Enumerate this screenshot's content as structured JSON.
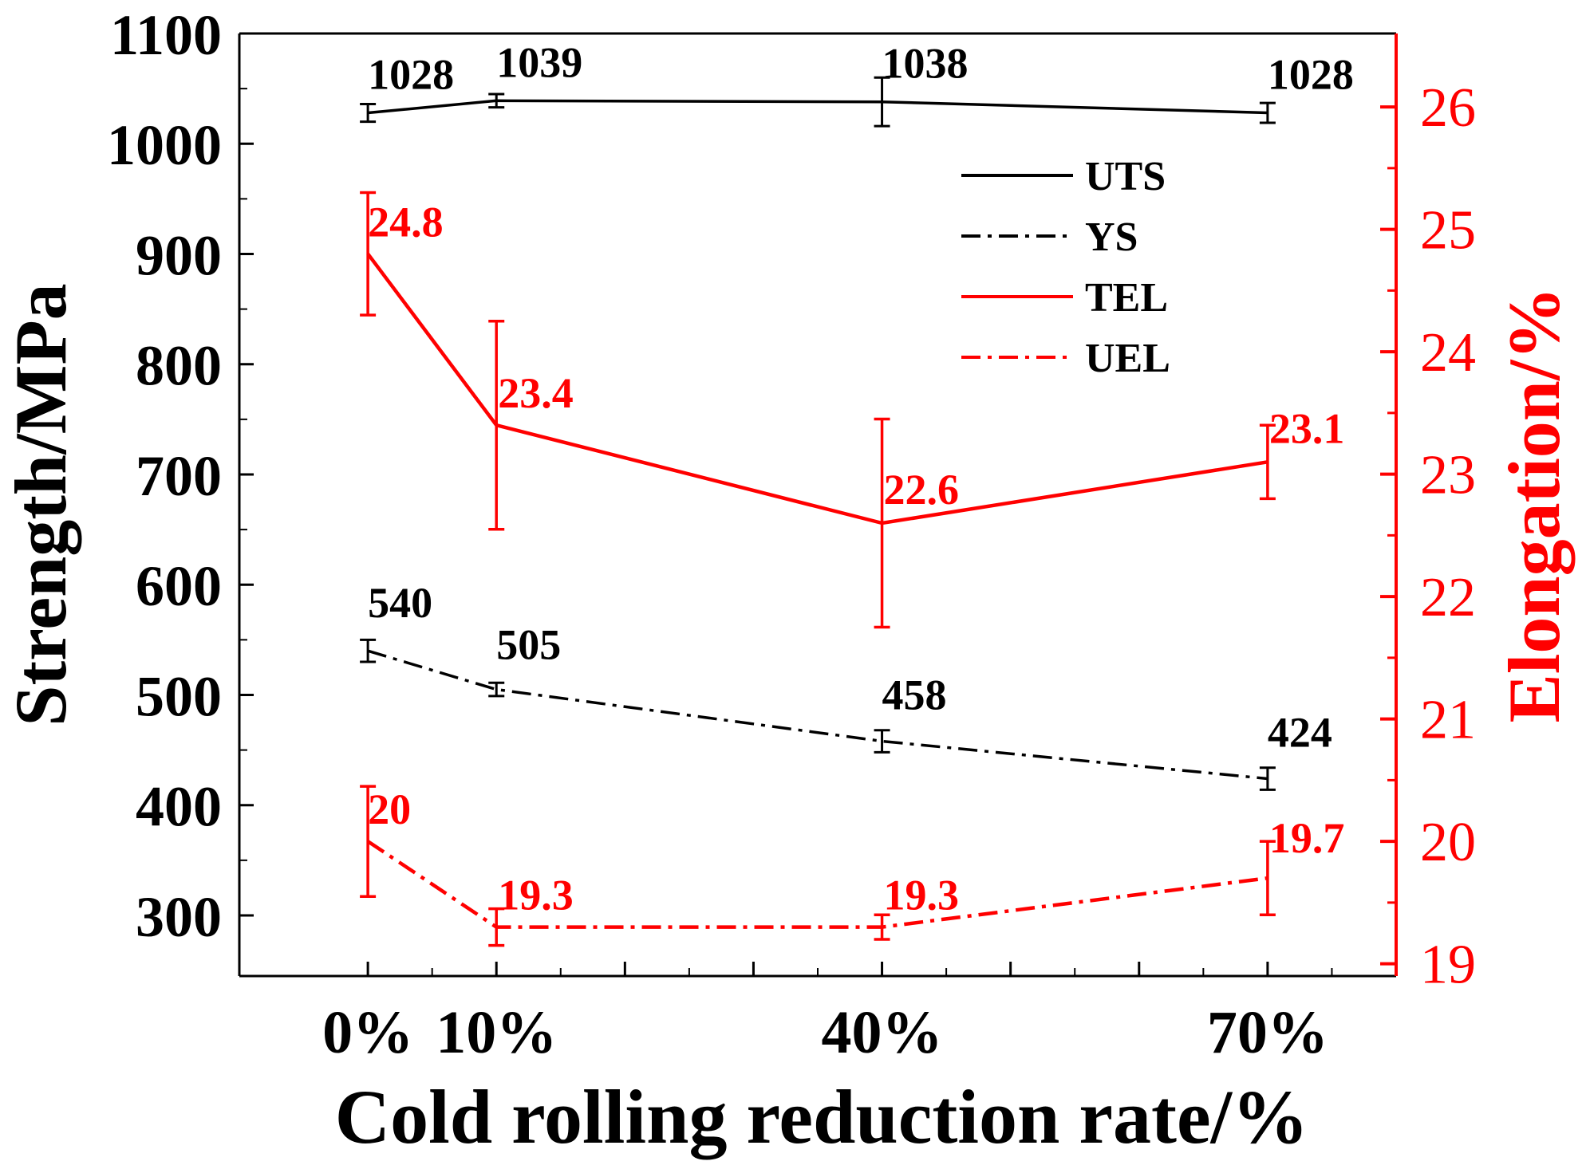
{
  "chart_data": {
    "type": "line",
    "title": "",
    "xlabel": "Cold rolling reduction rate/%",
    "ylabel_left": "Strength/MPa",
    "ylabel_right": "Elongation/%",
    "x_values": [
      0,
      10,
      40,
      70
    ],
    "x_tick_labels": [
      "0%",
      "10%",
      "40%",
      "70%"
    ],
    "x_range": [
      -10,
      80
    ],
    "y_left_range": [
      245,
      1100
    ],
    "y_left_ticks": [
      300,
      400,
      500,
      600,
      700,
      800,
      900,
      1000,
      1100
    ],
    "y_right_range": [
      18.9,
      26.6
    ],
    "y_right_ticks": [
      19,
      20,
      21,
      22,
      23,
      24,
      25,
      26
    ],
    "legend_position": "top-right",
    "series": [
      {
        "name": "UTS",
        "axis": "left",
        "color": "#000000",
        "style": "solid",
        "values": [
          1028,
          1039,
          1038,
          1028
        ],
        "errors": [
          8,
          6,
          22,
          9
        ],
        "labels": [
          "1028",
          "1039",
          "1038",
          "1028"
        ]
      },
      {
        "name": "YS",
        "axis": "left",
        "color": "#000000",
        "style": "dashdot",
        "values": [
          540,
          505,
          458,
          424
        ],
        "errors": [
          10,
          6,
          10,
          10
        ],
        "labels": [
          "540",
          "505",
          "458",
          "424"
        ]
      },
      {
        "name": "TEL",
        "axis": "right",
        "color": "#ff0000",
        "style": "solid",
        "values": [
          24.8,
          23.4,
          22.6,
          23.1
        ],
        "errors": [
          0.5,
          0.85,
          0.85,
          0.3
        ],
        "labels": [
          "24.8",
          "23.4",
          "22.6",
          "23.1"
        ]
      },
      {
        "name": "UEL",
        "axis": "right",
        "color": "#ff0000",
        "style": "dashdot",
        "values": [
          20.0,
          19.3,
          19.3,
          19.7
        ],
        "errors": [
          0.45,
          0.15,
          0.1,
          0.3
        ],
        "labels": [
          "20",
          "19.3",
          "19.3",
          "19.7"
        ]
      }
    ]
  }
}
